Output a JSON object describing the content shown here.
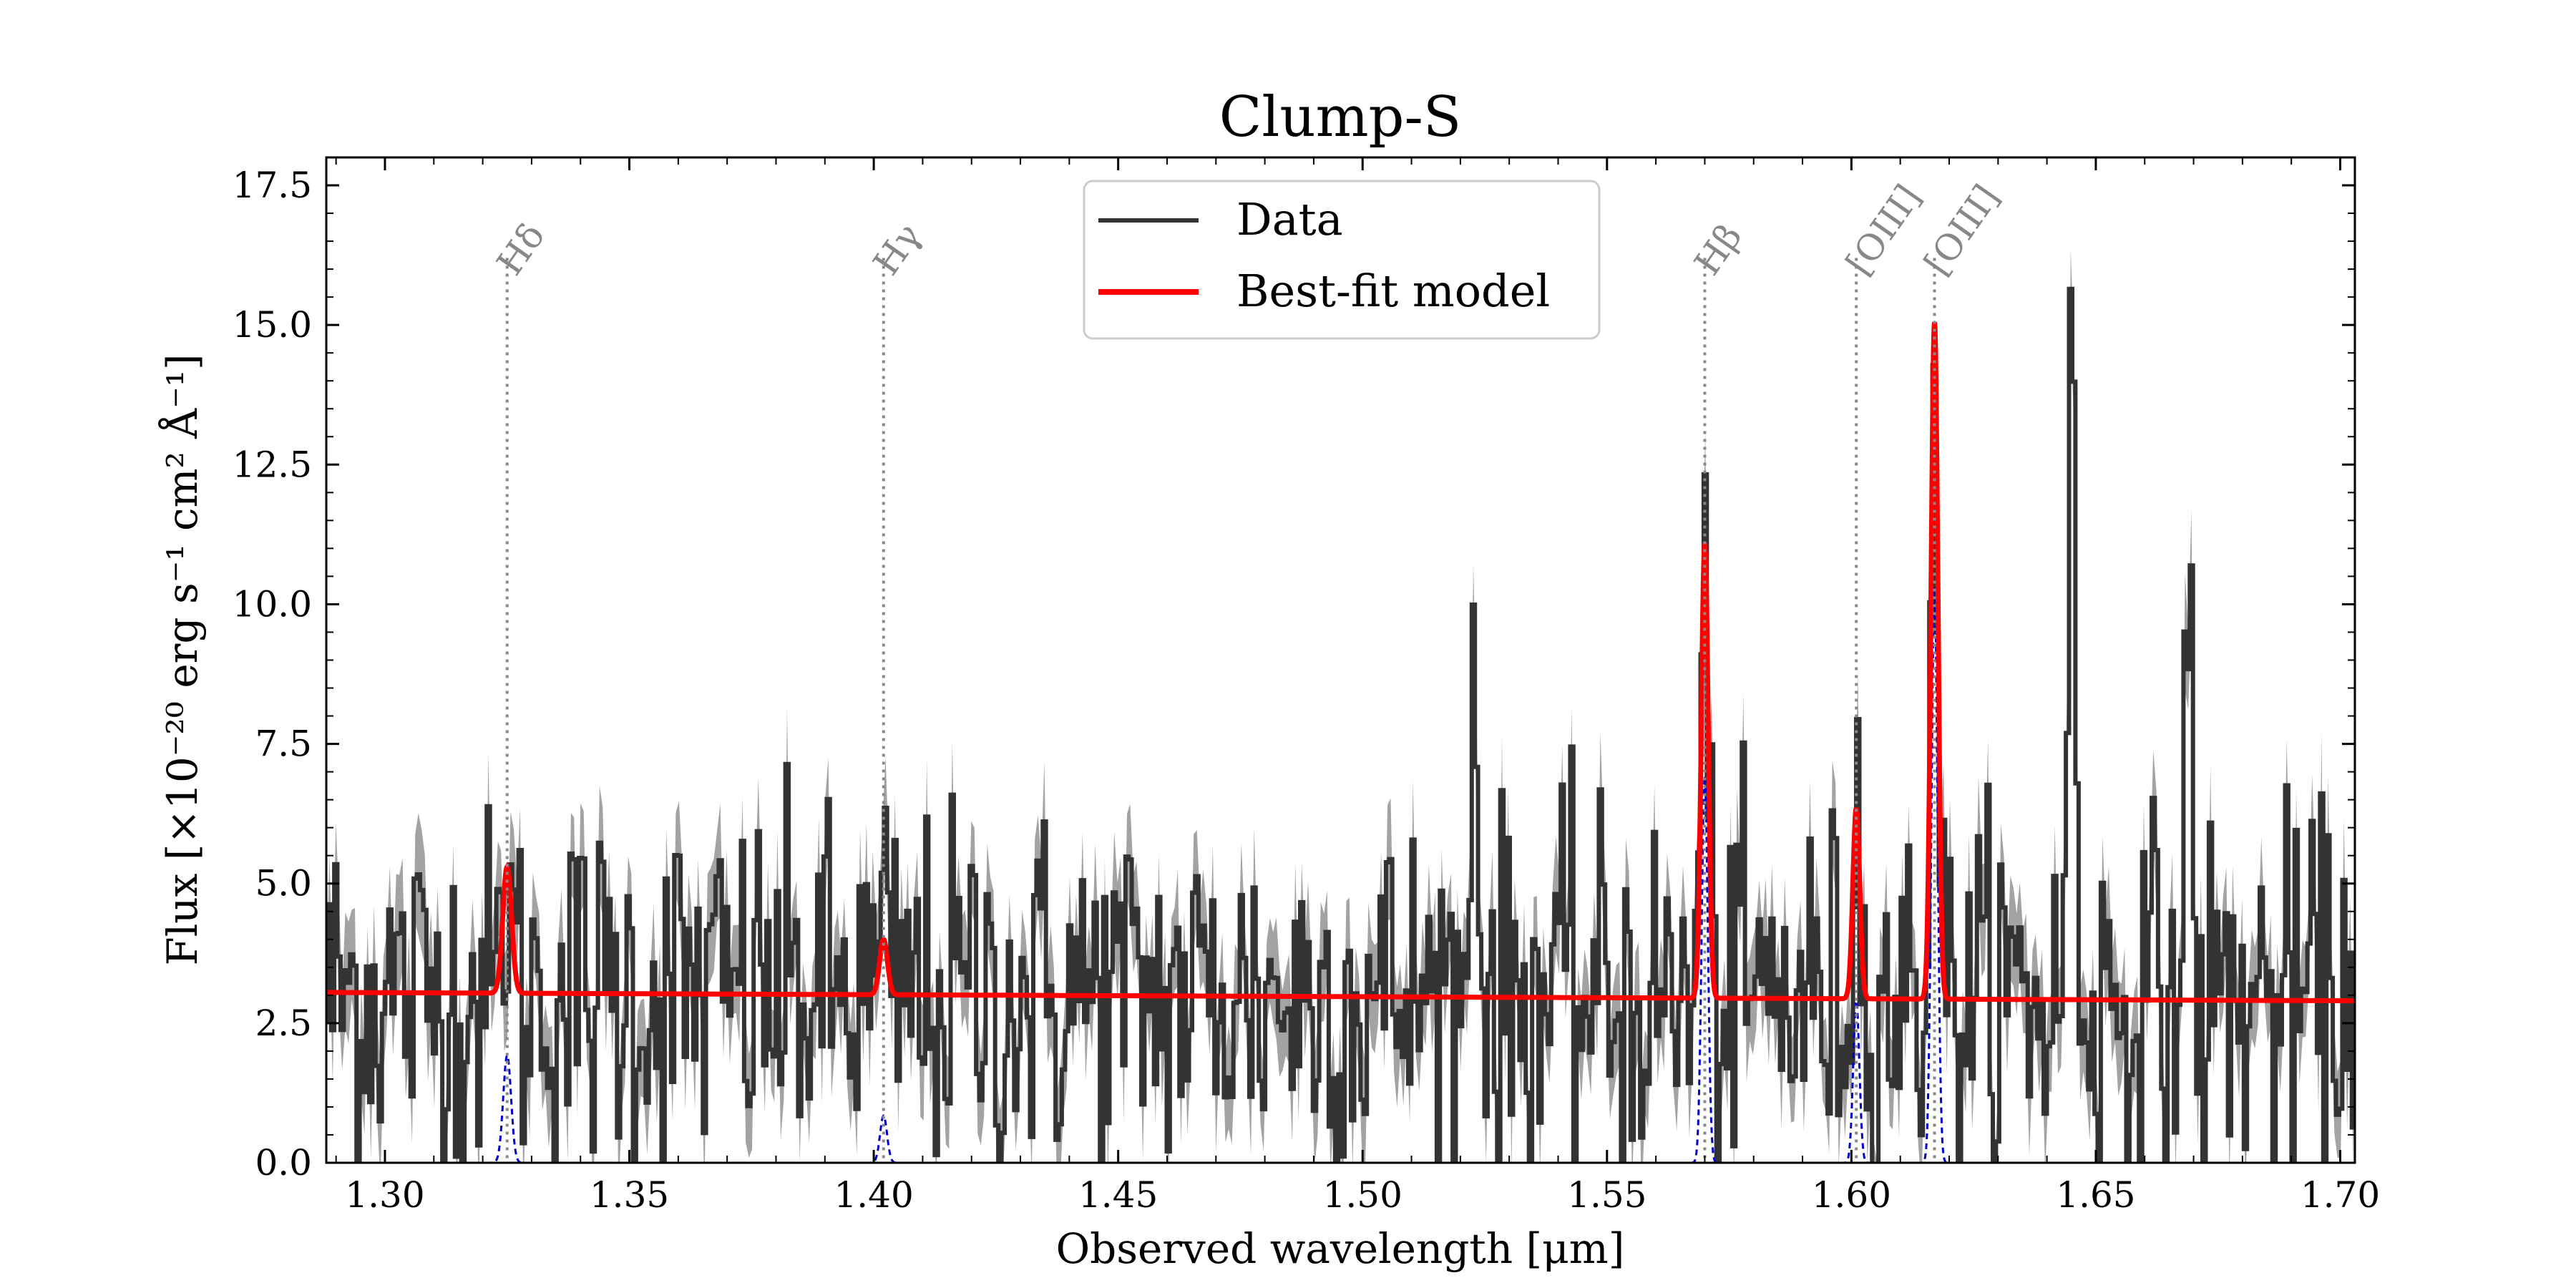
{
  "chart_data": {
    "type": "line",
    "title": "Clump-S",
    "xlabel": "Observed wavelength [μm]",
    "ylabel": "Flux [×10⁻²⁰ erg s⁻¹ cm² Å⁻¹]",
    "xlim": [
      1.288,
      1.703
    ],
    "ylim": [
      0.0,
      18.0
    ],
    "x_ticks": [
      "1.30",
      "1.35",
      "1.40",
      "1.45",
      "1.50",
      "1.55",
      "1.60",
      "1.65",
      "1.70"
    ],
    "x_tick_values": [
      1.3,
      1.35,
      1.4,
      1.45,
      1.5,
      1.55,
      1.6,
      1.65,
      1.7
    ],
    "y_ticks": [
      "0.0",
      "2.5",
      "5.0",
      "7.5",
      "10.0",
      "12.5",
      "15.0",
      "17.5"
    ],
    "y_tick_values": [
      0.0,
      2.5,
      5.0,
      7.5,
      10.0,
      12.5,
      15.0,
      17.5
    ],
    "legend": {
      "placement": "top-center",
      "entries": [
        {
          "label": "Data",
          "color": "#333333"
        },
        {
          "label": "Best-fit model",
          "color": "#ff0000"
        }
      ]
    },
    "line_markers": [
      {
        "label": "Hδ",
        "x": 1.325
      },
      {
        "label": "Hγ",
        "x": 1.402
      },
      {
        "label": "Hβ",
        "x": 1.57
      },
      {
        "label": "[OIII]",
        "x": 1.601
      },
      {
        "label": "[OIII]",
        "x": 1.617
      }
    ],
    "continuum": {
      "x": [
        1.288,
        1.703
      ],
      "y": [
        3.05,
        2.9
      ]
    },
    "model_lines": [
      {
        "x": 1.325,
        "peak": 5.3,
        "sigma": 0.0009
      },
      {
        "x": 1.402,
        "peak": 4.0,
        "sigma": 0.0008
      },
      {
        "x": 1.57,
        "peak": 11.1,
        "sigma": 0.0007
      },
      {
        "x": 1.601,
        "peak": 6.35,
        "sigma": 0.0007
      },
      {
        "x": 1.617,
        "peak": 15.05,
        "sigma": 0.0007
      }
    ],
    "data_peaks": [
      {
        "x": 1.523,
        "y": 10.0
      },
      {
        "x": 1.645,
        "y": 15.2
      },
      {
        "x": 1.669,
        "y": 10.4
      }
    ],
    "colors": {
      "data": "#333333",
      "error_band": "#999999",
      "model": "#ff0000",
      "components": "#0000cc",
      "markers": "#888888"
    }
  }
}
